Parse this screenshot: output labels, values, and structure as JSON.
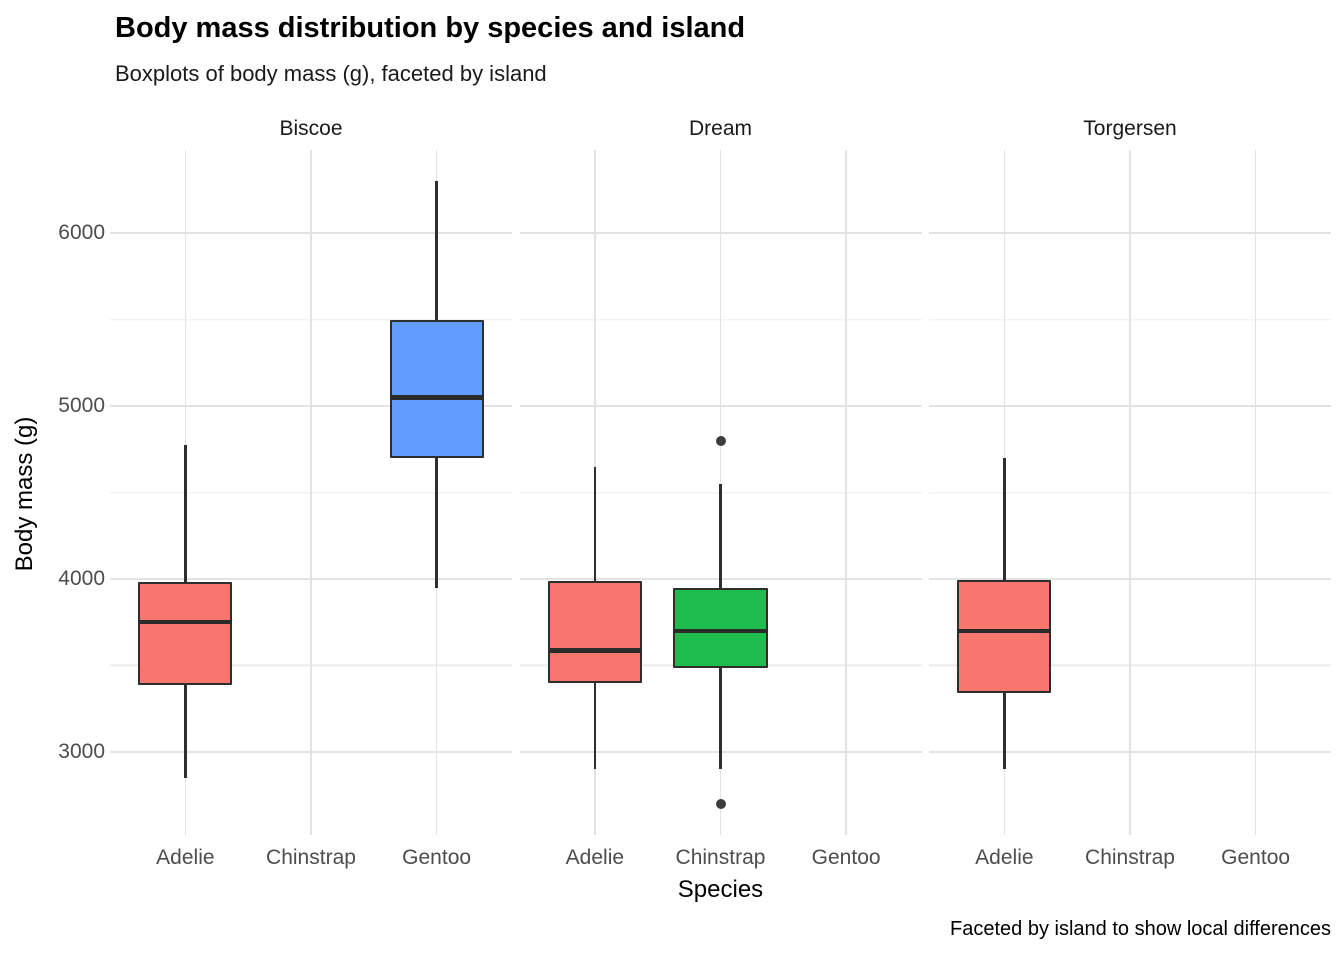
{
  "chart_data": {
    "type": "boxplot",
    "title": "Body mass distribution by species and island",
    "subtitle": "Boxplots of body mass (g), faceted by island",
    "caption": "Faceted by island to show local differences",
    "xlabel": "Species",
    "ylabel": "Body mass (g)",
    "categories": [
      "Adelie",
      "Chinstrap",
      "Gentoo"
    ],
    "y_ticks": [
      3000,
      4000,
      5000,
      6000
    ],
    "y_minor": [
      3500,
      4500,
      5500
    ],
    "ylim": [
      2520,
      6480
    ],
    "grid": "on",
    "legend": "none",
    "species_colors": {
      "Adelie": "#F8766D",
      "Chinstrap": "#1DBE4D",
      "Gentoo": "#619CFF"
    },
    "colors": {
      "box_border": "#2E2E2E",
      "median": "#2B2B2B",
      "outlier": "#3C3C3C",
      "grid_major": "#E3E3E3",
      "grid_minor": "#ECECEC",
      "axis_text": "#4D4D4D"
    },
    "facets": [
      {
        "island": "Biscoe",
        "boxes": [
          {
            "species": "Adelie",
            "whisker_low": 2850,
            "q1": 3387,
            "median": 3750,
            "q3": 3985,
            "whisker_high": 4775,
            "outliers": []
          },
          {
            "species": "Gentoo",
            "whisker_low": 3950,
            "q1": 4700,
            "median": 5050,
            "q3": 5500,
            "whisker_high": 6300,
            "outliers": []
          }
        ]
      },
      {
        "island": "Dream",
        "boxes": [
          {
            "species": "Adelie",
            "whisker_low": 2900,
            "q1": 3400,
            "median": 3588,
            "q3": 3988,
            "whisker_high": 4650,
            "outliers": []
          },
          {
            "species": "Chinstrap",
            "whisker_low": 2900,
            "q1": 3488,
            "median": 3700,
            "q3": 3950,
            "whisker_high": 4550,
            "outliers": [
              4800,
              2700
            ]
          }
        ]
      },
      {
        "island": "Torgersen",
        "boxes": [
          {
            "species": "Adelie",
            "whisker_low": 2900,
            "q1": 3338,
            "median": 3700,
            "q3": 3995,
            "whisker_high": 4700,
            "outliers": []
          }
        ]
      }
    ]
  }
}
